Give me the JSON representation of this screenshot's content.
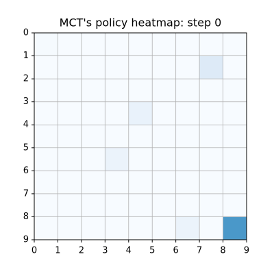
{
  "chart_data": {
    "type": "heatmap",
    "title": "MCT's policy heatmap: step 0",
    "values": [
      [
        0.01,
        0,
        0,
        0,
        0,
        0,
        0,
        0,
        0
      ],
      [
        0,
        0,
        0,
        0,
        0,
        0,
        0,
        0.13,
        0
      ],
      [
        0,
        0,
        0,
        0,
        0,
        0,
        0,
        0,
        0
      ],
      [
        0,
        0,
        0,
        0,
        0.07,
        0,
        0,
        0,
        0
      ],
      [
        0,
        0,
        0,
        0,
        0,
        0,
        0,
        0,
        0
      ],
      [
        0,
        0,
        0,
        0.06,
        0,
        0,
        0,
        0,
        0
      ],
      [
        0,
        0,
        0,
        0,
        0,
        0,
        0,
        0,
        0
      ],
      [
        0,
        0,
        0,
        0,
        0,
        0,
        0,
        0,
        0
      ],
      [
        0,
        0,
        0,
        0,
        0,
        0,
        0.06,
        0,
        0.6
      ]
    ],
    "colormap": "Blues",
    "clim": [
      0,
      1
    ],
    "xlim": [
      0,
      9
    ],
    "ylim": [
      9,
      0
    ],
    "xticks": [
      0,
      1,
      2,
      3,
      4,
      5,
      6,
      7,
      8,
      9
    ],
    "yticks": [
      0,
      1,
      2,
      3,
      4,
      5,
      6,
      7,
      8,
      9
    ],
    "grid": true
  }
}
